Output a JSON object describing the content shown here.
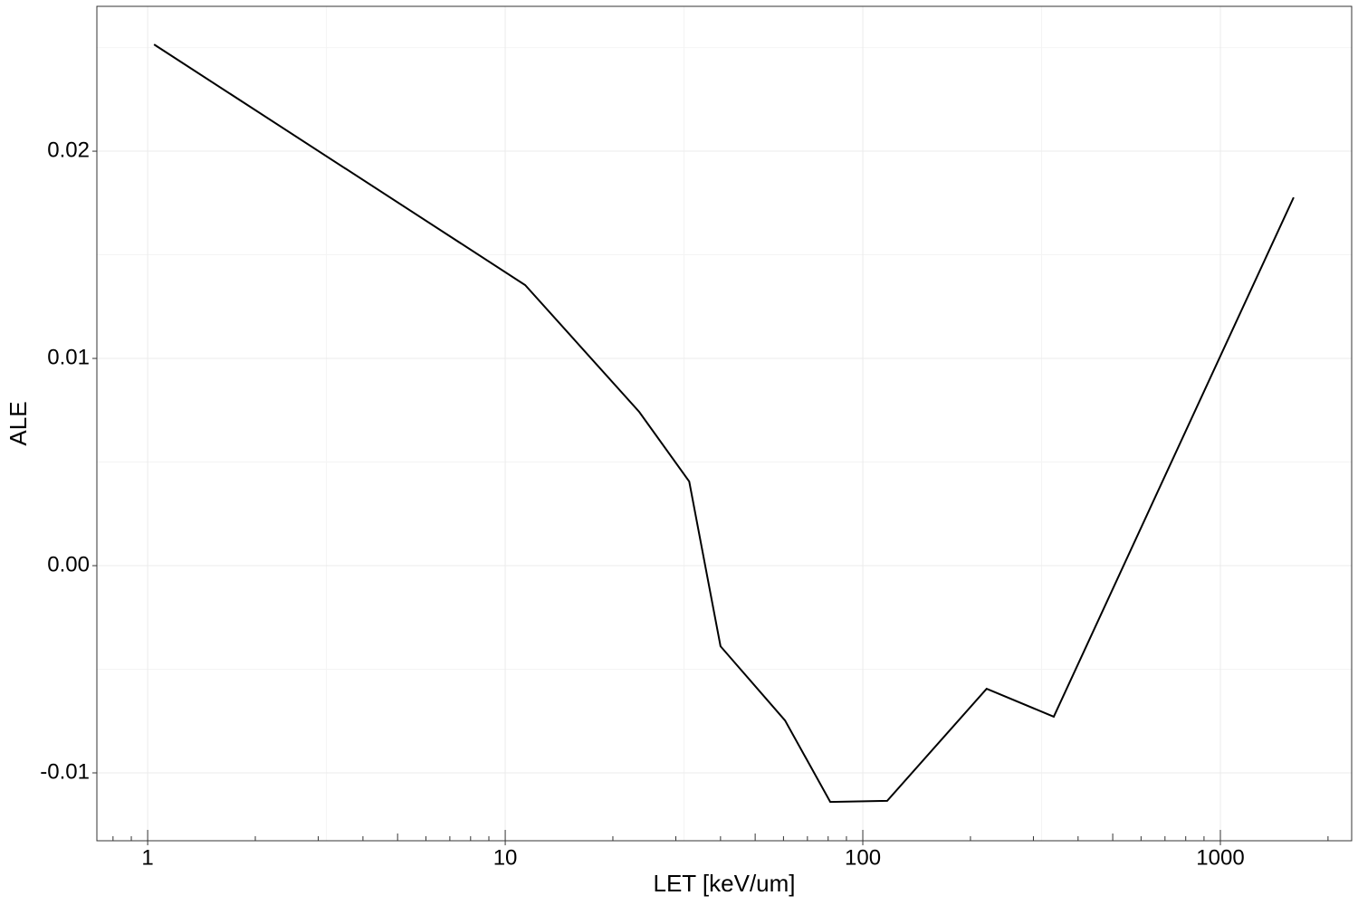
{
  "chart_data": {
    "type": "line",
    "x_label": "LET [keV/um]",
    "y_label": "ALE",
    "x": [
      1.042,
      11.37,
      23.7,
      32.7,
      40.0,
      60.6,
      81.1,
      117,
      222,
      342,
      1603
    ],
    "series": [
      {
        "color": "#000000",
        "values": [
          0.02515,
          0.01354,
          0.00742,
          0.00406,
          -0.00389,
          -0.00747,
          -0.0114,
          -0.01135,
          -0.00594,
          -0.00729,
          0.01777
        ]
      }
    ],
    "xlim": [
      0.721,
      2329
    ],
    "xticks": [
      1,
      10,
      100,
      1000
    ],
    "xlog": true,
    "ylim": [
      -0.013275,
      0.02699
    ],
    "yticks": [
      0.02,
      0.01,
      {
        "value": 0,
        "label": "0.00"
      },
      -0.01
    ],
    "grid": true
  }
}
